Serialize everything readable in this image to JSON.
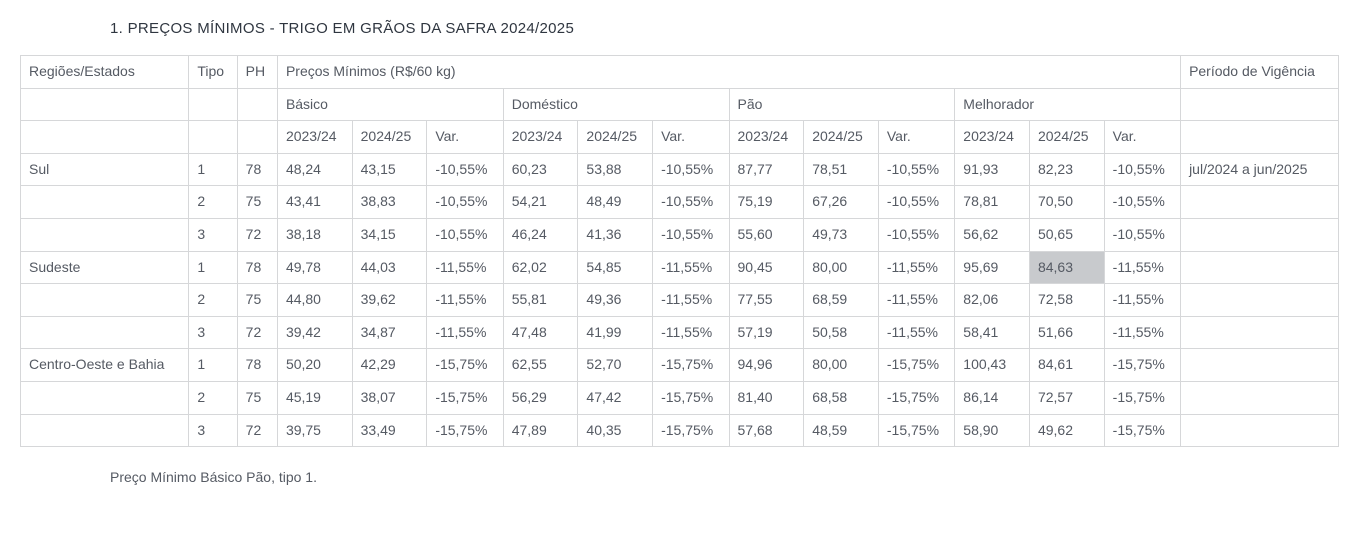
{
  "title": "1. PREÇOS MÍNIMOS - TRIGO EM GRÃOS DA SAFRA 2024/2025",
  "footnote": "Preço Mínimo Básico Pão, tipo 1.",
  "headers": {
    "regioes": "Regiões/Estados",
    "tipo": "Tipo",
    "ph": "PH",
    "precos_minimos": "Preços Mínimos (R$/60 kg)",
    "periodo": "Período de Vigência",
    "basico": "Básico",
    "domestico": "Doméstico",
    "pao": "Pão",
    "melhorador": "Melhorador",
    "c2023": "2023/24",
    "c2024": "2024/25",
    "var": "Var."
  },
  "periodo_valor": "jul/2024 a jun/2025",
  "highlight": {
    "row": 3,
    "col": 13
  },
  "rows": [
    {
      "regiao": "Sul",
      "tipo": "1",
      "ph": "78",
      "basico": [
        "48,24",
        "43,15",
        "-10,55%"
      ],
      "domestico": [
        "60,23",
        "53,88",
        "-10,55%"
      ],
      "pao": [
        "87,77",
        "78,51",
        "-10,55%"
      ],
      "melhorador": [
        "91,93",
        "82,23",
        "-10,55%"
      ]
    },
    {
      "regiao": "",
      "tipo": "2",
      "ph": "75",
      "basico": [
        "43,41",
        "38,83",
        "-10,55%"
      ],
      "domestico": [
        "54,21",
        "48,49",
        "-10,55%"
      ],
      "pao": [
        "75,19",
        "67,26",
        "-10,55%"
      ],
      "melhorador": [
        "78,81",
        "70,50",
        "-10,55%"
      ]
    },
    {
      "regiao": "",
      "tipo": "3",
      "ph": "72",
      "basico": [
        "38,18",
        "34,15",
        "-10,55%"
      ],
      "domestico": [
        "46,24",
        "41,36",
        "-10,55%"
      ],
      "pao": [
        "55,60",
        "49,73",
        "-10,55%"
      ],
      "melhorador": [
        "56,62",
        "50,65",
        "-10,55%"
      ]
    },
    {
      "regiao": "Sudeste",
      "tipo": "1",
      "ph": "78",
      "basico": [
        "49,78",
        "44,03",
        "-11,55%"
      ],
      "domestico": [
        "62,02",
        "54,85",
        "-11,55%"
      ],
      "pao": [
        "90,45",
        "80,00",
        "-11,55%"
      ],
      "melhorador": [
        "95,69",
        "84,63",
        "-11,55%"
      ]
    },
    {
      "regiao": "",
      "tipo": "2",
      "ph": "75",
      "basico": [
        "44,80",
        "39,62",
        "-11,55%"
      ],
      "domestico": [
        "55,81",
        "49,36",
        "-11,55%"
      ],
      "pao": [
        "77,55",
        "68,59",
        "-11,55%"
      ],
      "melhorador": [
        "82,06",
        "72,58",
        "-11,55%"
      ]
    },
    {
      "regiao": "",
      "tipo": "3",
      "ph": "72",
      "basico": [
        "39,42",
        "34,87",
        "-11,55%"
      ],
      "domestico": [
        "47,48",
        "41,99",
        "-11,55%"
      ],
      "pao": [
        "57,19",
        "50,58",
        "-11,55%"
      ],
      "melhorador": [
        "58,41",
        "51,66",
        "-11,55%"
      ]
    },
    {
      "regiao": "Centro-Oeste e Bahia",
      "tipo": "1",
      "ph": "78",
      "basico": [
        "50,20",
        "42,29",
        "-15,75%"
      ],
      "domestico": [
        "62,55",
        "52,70",
        "-15,75%"
      ],
      "pao": [
        "94,96",
        "80,00",
        "-15,75%"
      ],
      "melhorador": [
        "100,43",
        "84,61",
        "-15,75%"
      ]
    },
    {
      "regiao": "",
      "tipo": "2",
      "ph": "75",
      "basico": [
        "45,19",
        "38,07",
        "-15,75%"
      ],
      "domestico": [
        "56,29",
        "47,42",
        "-15,75%"
      ],
      "pao": [
        "81,40",
        "68,58",
        "-15,75%"
      ],
      "melhorador": [
        "86,14",
        "72,57",
        "-15,75%"
      ]
    },
    {
      "regiao": "",
      "tipo": "3",
      "ph": "72",
      "basico": [
        "39,75",
        "33,49",
        "-15,75%"
      ],
      "domestico": [
        "47,89",
        "40,35",
        "-15,75%"
      ],
      "pao": [
        "57,68",
        "48,59",
        "-15,75%"
      ],
      "melhorador": [
        "58,90",
        "49,62",
        "-15,75%"
      ]
    }
  ]
}
